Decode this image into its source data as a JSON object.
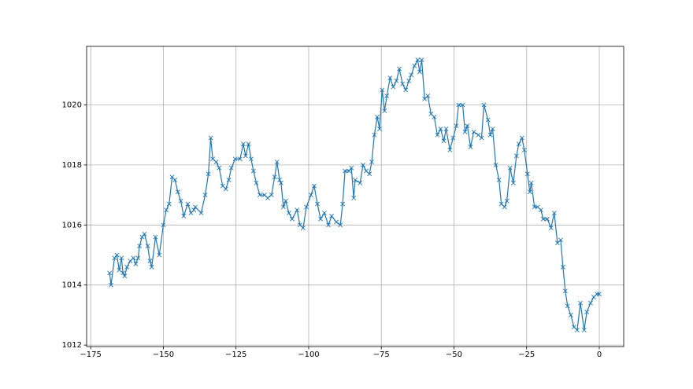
{
  "chart_data": {
    "type": "line",
    "color": "#1f77b4",
    "marker": "x",
    "grid": true,
    "x": [
      -168.5,
      -168,
      -166.8,
      -166,
      -165.2,
      -164.4,
      -163.9,
      -163.3,
      -162.5,
      -161.4,
      -160.3,
      -159.5,
      -158.7,
      -158.2,
      -157.3,
      -156.5,
      -155.4,
      -154.6,
      -154,
      -152.7,
      -151.4,
      -150,
      -149,
      -148,
      -147,
      -146,
      -145,
      -144,
      -143,
      -141.6,
      -140.5,
      -139.5,
      -139,
      -137,
      -135.6,
      -134.5,
      -133.7,
      -133,
      -131.8,
      -130.8,
      -129.6,
      -128.5,
      -127.5,
      -126.6,
      -125.3,
      -123.6,
      -122.5,
      -121.7,
      -120.7,
      -119.8,
      -119,
      -118,
      -116.8,
      -115.2,
      -114.1,
      -112.8,
      -111.7,
      -110.9,
      -110,
      -109.5,
      -108.7,
      -107.9,
      -106.8,
      -105.7,
      -104,
      -103,
      -101.9,
      -100.8,
      -99.2,
      -98.1,
      -97,
      -95.9,
      -94.6,
      -93.2,
      -92.1,
      -90.5,
      -89.1,
      -88.3,
      -87.5,
      -86.1,
      -85.3,
      -84.5,
      -84,
      -82.3,
      -81.3,
      -80.2,
      -79.1,
      -78.3,
      -77.4,
      -76.4,
      -75.6,
      -74.7,
      -73.9,
      -73.1,
      -72,
      -70.9,
      -69.8,
      -68.8,
      -67.7,
      -66.6,
      -65.5,
      -64.7,
      -63.6,
      -62.5,
      -61.8,
      -61.1,
      -60.1,
      -59,
      -57.9,
      -56.8,
      -55.7,
      -54.6,
      -53.5,
      -52.7,
      -51.4,
      -50.3,
      -49.2,
      -48.4,
      -47,
      -46.2,
      -45.4,
      -44.3,
      -43.2,
      -41.6,
      -40.5,
      -39.7,
      -38.3,
      -37.5,
      -36.7,
      -35.6,
      -34.5,
      -33.7,
      -32.6,
      -31.8,
      -30.7,
      -29.6,
      -28.5,
      -27.7,
      -26.6,
      -25.8,
      -24.7,
      -23.9,
      -23.4,
      -22.3,
      -21.2,
      -20.1,
      -19.3,
      -17.9,
      -16.6,
      -15.5,
      -14.4,
      -13.3,
      -12.5,
      -11.7,
      -10.9,
      -9.8,
      -8.7,
      -7.6,
      -6.5,
      -5.2,
      -4.3,
      -3,
      -1.9,
      -0.8,
      0
    ],
    "values": [
      1014.4,
      1014.0,
      1014.9,
      1015.0,
      1014.5,
      1014.9,
      1014.4,
      1014.3,
      1014.6,
      1014.8,
      1014.9,
      1014.7,
      1014.9,
      1015.3,
      1015.6,
      1015.7,
      1015.3,
      1014.8,
      1014.6,
      1015.6,
      1015.0,
      1016.0,
      1016.5,
      1016.7,
      1017.6,
      1017.5,
      1017.1,
      1016.8,
      1016.3,
      1016.7,
      1016.4,
      1016.5,
      1016.6,
      1016.4,
      1017.0,
      1017.7,
      1018.9,
      1018.2,
      1018.1,
      1017.9,
      1017.3,
      1017.2,
      1017.5,
      1017.9,
      1018.2,
      1018.2,
      1018.7,
      1018.3,
      1018.7,
      1018.2,
      1017.8,
      1017.4,
      1017.0,
      1017.0,
      1016.9,
      1017.0,
      1017.6,
      1018.1,
      1017.5,
      1017.4,
      1016.6,
      1016.8,
      1016.4,
      1016.2,
      1016.5,
      1016.0,
      1015.9,
      1016.6,
      1017.0,
      1017.3,
      1016.7,
      1016.2,
      1016.4,
      1016.0,
      1016.3,
      1016.1,
      1016.0,
      1016.7,
      1017.8,
      1017.8,
      1017.9,
      1016.9,
      1017.5,
      1017.4,
      1018.0,
      1017.8,
      1017.7,
      1018.1,
      1019.0,
      1019.6,
      1019.2,
      1020.5,
      1019.8,
      1020.3,
      1020.9,
      1020.6,
      1020.8,
      1021.2,
      1020.7,
      1020.5,
      1020.8,
      1021.0,
      1021.3,
      1021.5,
      1021.1,
      1021.5,
      1020.2,
      1020.3,
      1019.7,
      1019.6,
      1019.0,
      1019.2,
      1018.8,
      1019.2,
      1018.5,
      1018.9,
      1019.3,
      1020.0,
      1020.0,
      1019.1,
      1019.3,
      1018.6,
      1019.1,
      1019.0,
      1018.9,
      1020.0,
      1019.5,
      1019.0,
      1019.2,
      1018.0,
      1017.5,
      1016.7,
      1016.6,
      1016.8,
      1017.9,
      1017.4,
      1018.3,
      1018.7,
      1018.9,
      1018.5,
      1017.7,
      1017.1,
      1017.4,
      1016.6,
      1016.6,
      1016.5,
      1016.2,
      1016.2,
      1015.9,
      1016.4,
      1015.4,
      1015.5,
      1014.6,
      1013.8,
      1013.3,
      1013.0,
      1012.6,
      1012.5,
      1013.4,
      1012.5,
      1013.1,
      1013.4,
      1013.6,
      1013.7,
      1013.7
    ],
    "xlim": [
      -176.4,
      8.4
    ],
    "ylim": [
      1011.95,
      1021.95
    ],
    "xticks": [
      {
        "value": -175,
        "label": "−175"
      },
      {
        "value": -150,
        "label": "−150"
      },
      {
        "value": -125,
        "label": "−125"
      },
      {
        "value": -100,
        "label": "−100"
      },
      {
        "value": -75,
        "label": "−75"
      },
      {
        "value": -50,
        "label": "−50"
      },
      {
        "value": -25,
        "label": "−25"
      },
      0
    ],
    "yticks": [
      1012,
      1014,
      1016,
      1018,
      1020
    ]
  }
}
